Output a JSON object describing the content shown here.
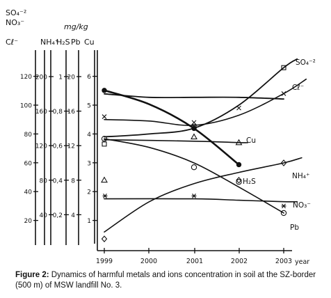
{
  "chart_data": {
    "type": "line",
    "title": "",
    "x": [
      "1999",
      "2000",
      "2001",
      "2002",
      "2003"
    ],
    "x_unit_label": "year",
    "unit_label": "mg/kg",
    "grid": false,
    "legend": "labels at line ends",
    "axes": [
      {
        "name": "SO4-2 / NO3-",
        "label_lines": [
          "SO₄⁻²",
          "NO₃⁻"
        ],
        "ticks": [
          {
            "label": "20",
            "value": 20
          },
          {
            "label": "40",
            "value": 40
          },
          {
            "label": "60",
            "value": 60
          },
          {
            "label": "80",
            "value": 80
          },
          {
            "label": "100",
            "value": 100
          },
          {
            "label": "120",
            "value": 120
          }
        ]
      },
      {
        "name": "Cl-",
        "label_lines": [
          "Cℓ⁻"
        ],
        "ticks": []
      },
      {
        "name": "NH4+",
        "label_lines": [
          "NH₄⁺"
        ],
        "ticks": [
          {
            "label": "40",
            "value": 40
          },
          {
            "label": "80",
            "value": 80
          },
          {
            "label": "120",
            "value": 120
          },
          {
            "label": "160",
            "value": 160
          },
          {
            "label": "200",
            "value": 200
          }
        ]
      },
      {
        "name": "H2S",
        "label_lines": [
          "H₂S"
        ],
        "ticks": [
          {
            "label": "0,2",
            "value": 0.2
          },
          {
            "label": "0,4",
            "value": 0.4
          },
          {
            "label": "0,6",
            "value": 0.6
          },
          {
            "label": "0,8",
            "value": 0.8
          },
          {
            "label": "1",
            "value": 1
          }
        ]
      },
      {
        "name": "Pb",
        "label_lines": [
          "Pb"
        ],
        "ticks": [
          {
            "label": "4",
            "value": 4
          },
          {
            "label": "8",
            "value": 8
          },
          {
            "label": "12",
            "value": 12
          },
          {
            "label": "16",
            "value": 16
          },
          {
            "label": "20",
            "value": 20
          }
        ]
      },
      {
        "name": "Cu",
        "label_lines": [
          "Cu"
        ],
        "ticks": [
          {
            "label": "1",
            "value": 1
          },
          {
            "label": "2",
            "value": 2
          },
          {
            "label": "3",
            "value": 3
          },
          {
            "label": "4",
            "value": 4
          },
          {
            "label": "5",
            "value": 5
          },
          {
            "label": "6",
            "value": 6
          }
        ]
      }
    ],
    "series": [
      {
        "name": "SO₄⁻²",
        "marker": "square",
        "scale_axis": "SO4-2 / NO3-",
        "x": [
          "1999",
          "2001",
          "2003"
        ],
        "values": [
          73,
          85,
          126
        ],
        "curve": [
          [
            1999,
            78
          ],
          [
            2000,
            80
          ],
          [
            2001,
            84
          ],
          [
            2002,
            100
          ],
          [
            2003,
            126
          ],
          [
            2003.3,
            132
          ]
        ]
      },
      {
        "name": "Cℓ⁻",
        "marker": "x",
        "scale_axis": "SO4-2 / NO3-",
        "x": [
          "1999",
          "2001",
          "2002",
          "2003"
        ],
        "values": [
          92,
          88,
          98,
          108
        ],
        "curve": [
          [
            1999,
            90
          ],
          [
            2000,
            89
          ],
          [
            2001,
            86
          ],
          [
            2002,
            93
          ],
          [
            2003,
            108
          ],
          [
            2003.5,
            118
          ]
        ]
      },
      {
        "name": "Cu",
        "marker": "triangle",
        "scale_axis": "Cu",
        "x": [
          "1999",
          "2001",
          "2002"
        ],
        "values": [
          2.4,
          3.9,
          3.7
        ],
        "curve": [
          [
            1999,
            3.8
          ],
          [
            2001,
            3.75
          ],
          [
            2002,
            3.7
          ],
          [
            2002.2,
            3.7
          ]
        ]
      },
      {
        "name": "H₂S",
        "marker": "dot",
        "scale_axis": "H2S",
        "x": [
          "1999",
          "2001",
          "2002"
        ],
        "values": [
          0.92,
          0.7,
          0.49
        ],
        "curve": [
          [
            1999,
            0.92
          ],
          [
            2000,
            0.84
          ],
          [
            2001,
            0.7
          ],
          [
            2002,
            0.49
          ]
        ]
      },
      {
        "name": "NH₄⁺",
        "marker": "diamond",
        "scale_axis": "NH4+",
        "x": [
          "1999",
          "2002",
          "2003"
        ],
        "values": [
          12,
          80,
          100
        ],
        "curve": [
          [
            1999,
            20
          ],
          [
            2000,
            55
          ],
          [
            2001,
            76
          ],
          [
            2002,
            89
          ],
          [
            2003,
            100
          ],
          [
            2003.4,
            106
          ]
        ]
      },
      {
        "name": "NO₃⁻",
        "marker": "asterisk",
        "scale_axis": "SO4-2 / NO3-",
        "x": [
          "1999",
          "2001",
          "2003"
        ],
        "values": [
          37,
          37,
          30
        ],
        "curve": [
          [
            1999,
            35
          ],
          [
            2001,
            35
          ],
          [
            2002,
            34
          ],
          [
            2003,
            33
          ],
          [
            2003.3,
            33
          ]
        ]
      },
      {
        "name": "Pb",
        "marker": "circle",
        "scale_axis": "Pb",
        "x": [
          "1999",
          "2001",
          "2002",
          "2003"
        ],
        "values": [
          12.8,
          9.5,
          7.8,
          4.2
        ],
        "curve": [
          [
            1999,
            12.8
          ],
          [
            2000,
            11.8
          ],
          [
            2001,
            10
          ],
          [
            2002,
            7.2
          ],
          [
            2003,
            4.2
          ]
        ]
      },
      {
        "name": "",
        "marker": "none",
        "scale_axis": "H2S",
        "x": [],
        "values": [],
        "curve": [
          [
            1999,
            0.9
          ],
          [
            2000,
            0.88
          ],
          [
            2001,
            0.88
          ],
          [
            2002,
            0.88
          ],
          [
            2003,
            0.87
          ]
        ]
      }
    ]
  },
  "caption": {
    "label": "Figure 2:",
    "text": " Dynamics of harmful metals and ions concentration in soil at the SZ-border (500 m) of MSW landfill No. 3."
  },
  "colors": {
    "ink": "#111111",
    "background": "#ffffff"
  }
}
